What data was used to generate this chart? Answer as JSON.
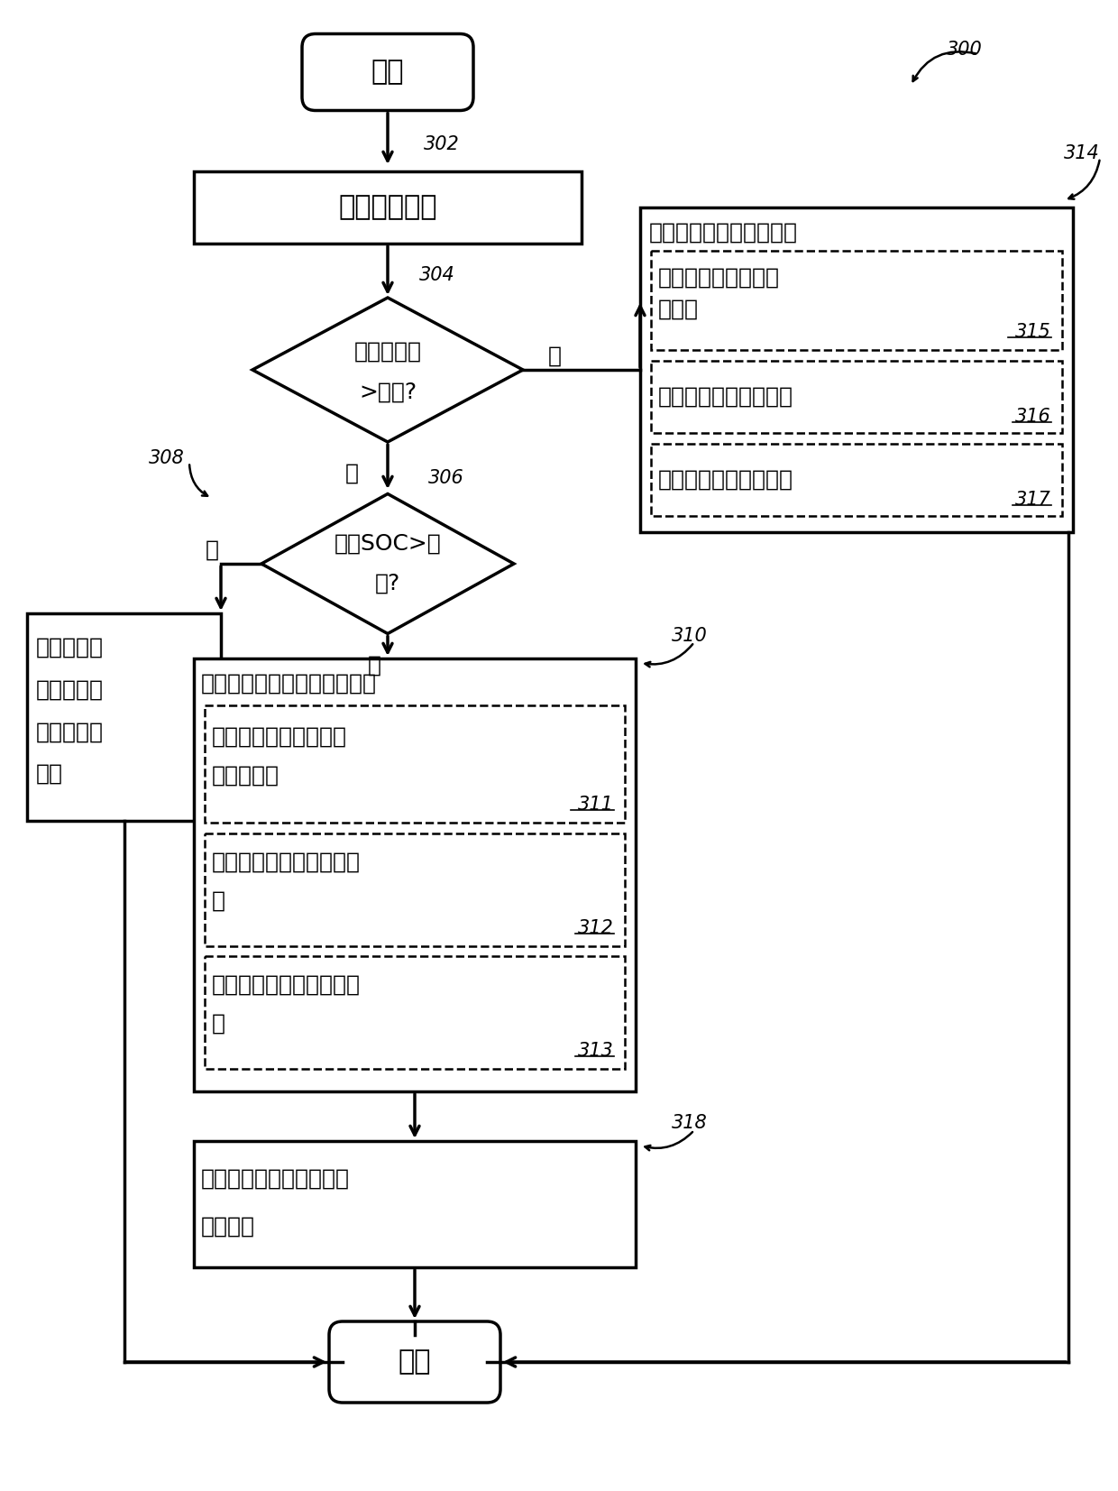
{
  "label_300": "300",
  "label_302": "302",
  "label_304": "304",
  "label_306": "306",
  "label_308": "308",
  "label_310": "310",
  "label_311": "311",
  "label_312": "312",
  "label_313": "313",
  "label_314": "314",
  "label_315": "315",
  "label_316": "316",
  "label_317": "317",
  "label_318": "318",
  "text_start": "开始",
  "text_end": "结束",
  "text_302": "估计车辆工况",
  "text_304a": "期望的扔矩",
  "text_304b": ">阀值?",
  "text_yes": "是",
  "text_no": "否",
  "text_306a": "电池SOC>阀",
  "text_306b": "值?",
  "text_308a": "停用发动机",
  "text_308b": "并使用马达",
  "text_308c": "输送期望的",
  "text_308d": "扔矩",
  "text_310h": "使用阿特金森循环操作发动机",
  "text_311a": "使用没有添加辛烷值促",
  "text_311b": "进剂的燃料",
  "text_312a": "使用阿特金森循环气门正",
  "text_312b": "时",
  "text_313a": "使用阿特金森循环火花正",
  "text_313b": "时",
  "text_314h": "使用奥托循环操作发动机",
  "text_315a": "将辛烷值促进剂喷射",
  "text_315b": "到燃料",
  "text_316": "使用奥托循环气门正时",
  "text_317": "使用奥托循环火花正时",
  "text_318a": "在发动机操作期间给马达",
  "text_318b": "电池充电",
  "bg_color": "#ffffff"
}
